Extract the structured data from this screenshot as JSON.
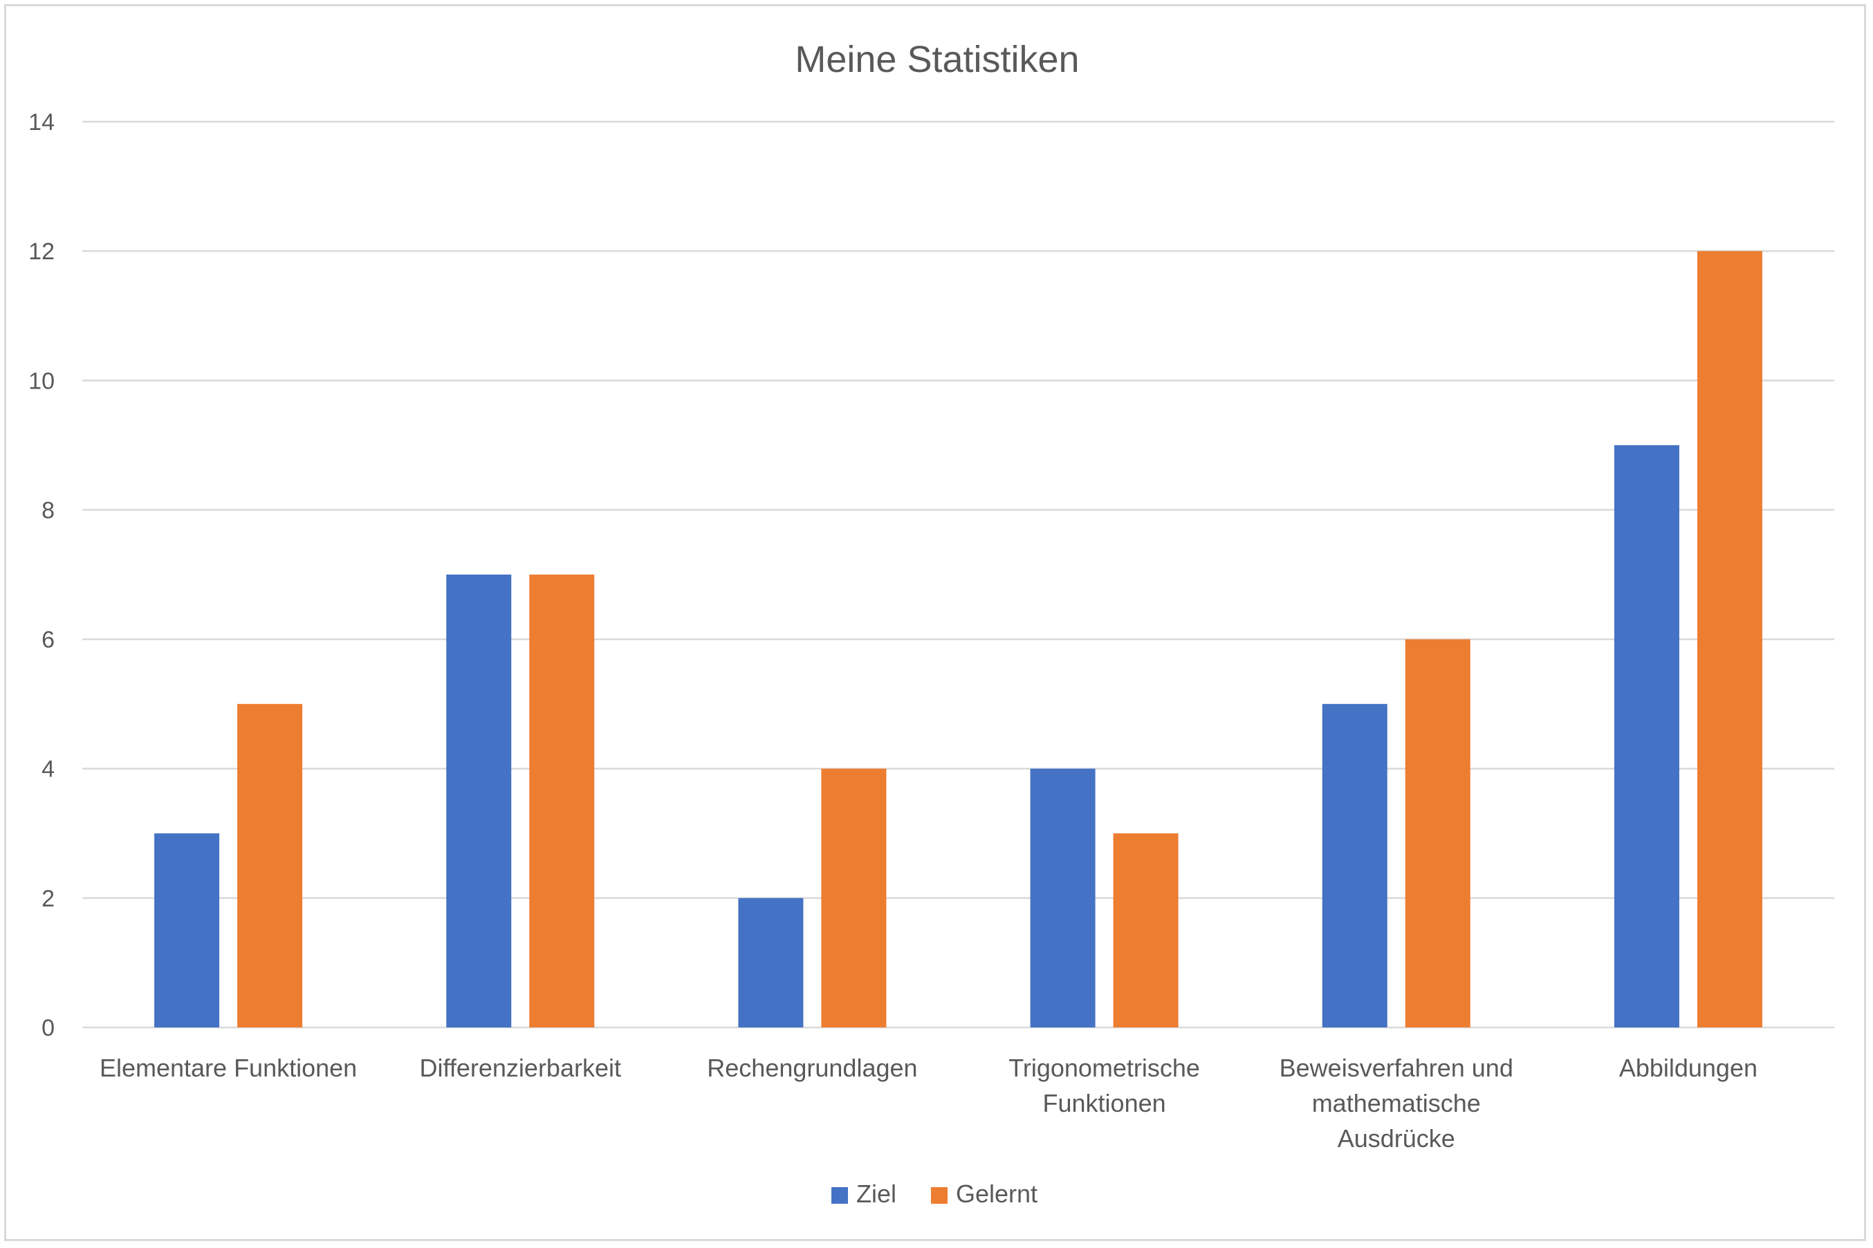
{
  "chart_data": {
    "type": "bar",
    "title": "Meine Statistiken",
    "xlabel": "",
    "ylabel": "",
    "ylim": [
      0,
      14
    ],
    "yticks": [
      0,
      2,
      4,
      6,
      8,
      10,
      12,
      14
    ],
    "grid": true,
    "legend_position": "bottom",
    "categories": [
      [
        "Elementare Funktionen"
      ],
      [
        "Differenzierbarkeit"
      ],
      [
        "Rechengrundlagen"
      ],
      [
        "Trigonometrische",
        "Funktionen"
      ],
      [
        "Beweisverfahren und",
        "mathematische",
        "Ausdrücke"
      ],
      [
        "Abbildungen"
      ]
    ],
    "series": [
      {
        "name": "Ziel",
        "color": "#4472c4",
        "values": [
          3,
          7,
          2,
          4,
          5,
          9
        ]
      },
      {
        "name": "Gelernt",
        "color": "#ed7d31",
        "values": [
          5,
          7,
          4,
          3,
          6,
          12
        ]
      }
    ],
    "colors": {
      "gridline": "#d9d9d9",
      "axis": "#d9d9d9",
      "text": "#595959"
    }
  }
}
